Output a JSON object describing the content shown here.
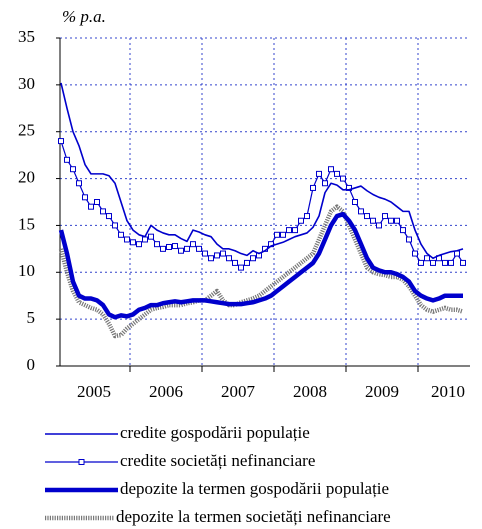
{
  "chart_data": {
    "type": "line",
    "y_label": "% p.a.",
    "categories": [
      null,
      null,
      null,
      null,
      null,
      null,
      "2005",
      null,
      null,
      null,
      null,
      null,
      null,
      null,
      null,
      null,
      null,
      null,
      "2006",
      null,
      null,
      null,
      null,
      null,
      null,
      null,
      null,
      null,
      null,
      null,
      "2007",
      null,
      null,
      null,
      null,
      null,
      null,
      null,
      null,
      null,
      null,
      null,
      "2008",
      null,
      null,
      null,
      null,
      null,
      null,
      null,
      null,
      null,
      null,
      null,
      "2009",
      null,
      null,
      null,
      null,
      null,
      null,
      null,
      null,
      null,
      null,
      "2010",
      null,
      null
    ],
    "ylim": [
      0,
      35
    ],
    "yticks": [
      0,
      5,
      10,
      15,
      20,
      25,
      30,
      35
    ],
    "grid": true,
    "series": [
      {
        "name": "credite gospodării populație",
        "color": "#0000cc",
        "line_width": 1.6,
        "values": [
          30.2,
          27.5,
          25,
          23.5,
          21.5,
          20.5,
          20.5,
          20.5,
          20.3,
          19.5,
          17.5,
          15.5,
          14.5,
          14,
          13.8,
          15,
          14.5,
          14.2,
          14,
          14,
          13.6,
          13.3,
          14.5,
          14.3,
          14,
          13.8,
          13,
          12.5,
          12.5,
          12.3,
          12,
          11.8,
          12.3,
          12,
          12.3,
          12.8,
          13,
          13.2,
          13.5,
          13.8,
          14,
          14.2,
          14.8,
          16,
          18.5,
          19.5,
          19.3,
          18.8,
          18.8,
          19,
          19.2,
          18.7,
          18.3,
          18,
          17.8,
          17.5,
          17,
          16.5,
          16.5,
          14.5,
          13,
          12,
          11.5,
          11.8,
          12,
          12.2,
          12.3,
          12.5
        ]
      },
      {
        "name": "credite societăți nefinanciare",
        "color": "#0000cc",
        "line_width": 1.2,
        "marker": "square",
        "values": [
          24,
          22,
          21,
          19.5,
          18,
          17,
          17.5,
          16.5,
          16,
          15,
          14,
          13.5,
          13.2,
          13,
          13.5,
          13.8,
          13,
          12.5,
          12.7,
          12.8,
          12.3,
          12.5,
          13,
          12.5,
          12,
          11.5,
          11.8,
          12,
          11.5,
          11,
          10.5,
          11,
          11.5,
          11.8,
          12.5,
          13,
          14,
          14,
          14.5,
          14.5,
          15.5,
          16,
          19,
          20.5,
          19.5,
          21,
          20.5,
          20,
          19,
          17.5,
          16.5,
          16,
          15.5,
          15,
          16,
          15.5,
          15.5,
          14.5,
          13.5,
          12,
          11,
          11.5,
          11,
          11.5,
          11,
          11,
          12,
          11
        ]
      },
      {
        "name": "depozite la termen gospodării populație",
        "color": "#0000cc",
        "line_width": 4.5,
        "values": [
          14.5,
          12,
          9,
          7.5,
          7.2,
          7.2,
          7,
          6.5,
          5.5,
          5.2,
          5.4,
          5.3,
          5.5,
          6,
          6.2,
          6.5,
          6.5,
          6.7,
          6.8,
          6.9,
          6.8,
          6.9,
          7,
          7,
          7,
          6.9,
          6.8,
          6.7,
          6.6,
          6.6,
          6.6,
          6.7,
          6.8,
          7,
          7.2,
          7.5,
          8,
          8.5,
          9,
          9.5,
          10,
          10.5,
          11,
          12,
          13.5,
          15,
          16,
          16.2,
          15.5,
          14.5,
          13,
          11.5,
          10.5,
          10.2,
          10,
          10,
          9.8,
          9.5,
          9,
          8,
          7.5,
          7.2,
          7,
          7.2,
          7.5,
          7.5,
          7.5,
          7.5
        ]
      },
      {
        "name": "depozite la termen societăți nefinanciare",
        "color": "#777777",
        "line_width": 4.5,
        "dash": "1.2 1.2",
        "values": [
          12.5,
          10,
          8,
          6.8,
          6.5,
          6.2,
          6,
          5.5,
          4.5,
          3.2,
          3.3,
          4,
          4.5,
          5,
          5.5,
          6,
          6.2,
          6.3,
          6.5,
          6.5,
          6.5,
          6.7,
          6.8,
          7,
          7,
          7.5,
          8,
          7,
          6.5,
          6.5,
          6.8,
          7,
          7.2,
          7.5,
          8,
          8.5,
          9,
          9.5,
          10,
          10.5,
          11,
          11.5,
          12,
          13.5,
          15,
          16.5,
          17,
          16.5,
          15,
          13.5,
          12,
          10.5,
          10,
          9.8,
          9.7,
          9.5,
          9.5,
          9.2,
          8.5,
          7.5,
          6.5,
          6,
          5.8,
          6,
          6.2,
          6,
          6,
          5.8
        ]
      }
    ]
  }
}
